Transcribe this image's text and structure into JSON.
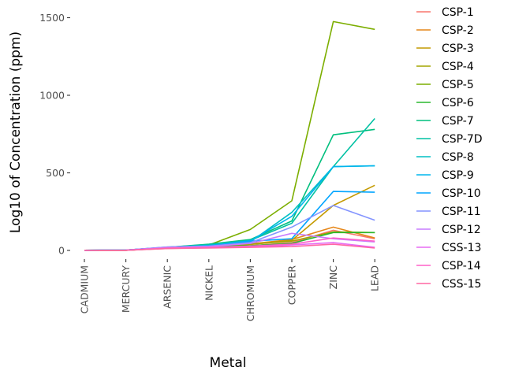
{
  "chart_data": {
    "type": "line",
    "title": "",
    "xlabel": "Metal",
    "ylabel": "Log10 of Concentration (ppm)",
    "categories": [
      "CADMIUM",
      "MERCURY",
      "ARSENIC",
      "NICKEL",
      "CHROMIUM",
      "COPPER",
      "ZINC",
      "LEAD"
    ],
    "yticks": [
      0,
      500,
      1000,
      1500
    ],
    "ylim": [
      -50,
      1550
    ],
    "grid": false,
    "legend_position": "right",
    "series": [
      {
        "name": "CSP-1",
        "color": "#F8766D",
        "values": [
          1,
          1,
          12,
          18,
          30,
          50,
          130,
          75
        ]
      },
      {
        "name": "CSP-2",
        "color": "#E6871A",
        "values": [
          1,
          1,
          14,
          22,
          42,
          70,
          150,
          80
        ]
      },
      {
        "name": "CSP-3",
        "color": "#C49A00",
        "values": [
          1,
          1,
          15,
          24,
          38,
          65,
          290,
          420
        ]
      },
      {
        "name": "CSP-4",
        "color": "#A3A500",
        "values": [
          1,
          1,
          14,
          22,
          40,
          60,
          120,
          115
        ]
      },
      {
        "name": "CSP-5",
        "color": "#7CAE00",
        "values": [
          1,
          2,
          18,
          35,
          135,
          320,
          1475,
          1425
        ]
      },
      {
        "name": "CSP-6",
        "color": "#2AB82E",
        "values": [
          1,
          1,
          15,
          25,
          30,
          45,
          115,
          115
        ]
      },
      {
        "name": "CSP-7",
        "color": "#00BF7D",
        "values": [
          1,
          2,
          20,
          40,
          70,
          190,
          745,
          780
        ]
      },
      {
        "name": "CSP-7D",
        "color": "#00C1A3",
        "values": [
          1,
          2,
          20,
          38,
          65,
          175,
          540,
          850
        ]
      },
      {
        "name": "CSP-8",
        "color": "#00BFC4",
        "values": [
          1,
          2,
          22,
          30,
          55,
          245,
          540,
          545
        ]
      },
      {
        "name": "CSP-9",
        "color": "#00B5EE",
        "values": [
          1,
          2,
          20,
          32,
          62,
          220,
          540,
          545
        ]
      },
      {
        "name": "CSP-10",
        "color": "#00A5FF",
        "values": [
          1,
          2,
          20,
          28,
          60,
          75,
          380,
          375
        ]
      },
      {
        "name": "CSP-11",
        "color": "#8494FF",
        "values": [
          1,
          2,
          22,
          28,
          50,
          150,
          290,
          195
        ]
      },
      {
        "name": "CSP-12",
        "color": "#C77CFF",
        "values": [
          1,
          2,
          20,
          25,
          45,
          110,
          75,
          55
        ]
      },
      {
        "name": "CSS-13",
        "color": "#E76BF3",
        "values": [
          1,
          1,
          14,
          18,
          22,
          35,
          50,
          20
        ]
      },
      {
        "name": "CSP-14",
        "color": "#FF61C9",
        "values": [
          1,
          1,
          15,
          20,
          28,
          40,
          80,
          60
        ]
      },
      {
        "name": "CSS-15",
        "color": "#FF67A4",
        "values": [
          1,
          1,
          12,
          15,
          20,
          25,
          40,
          15
        ]
      }
    ]
  }
}
